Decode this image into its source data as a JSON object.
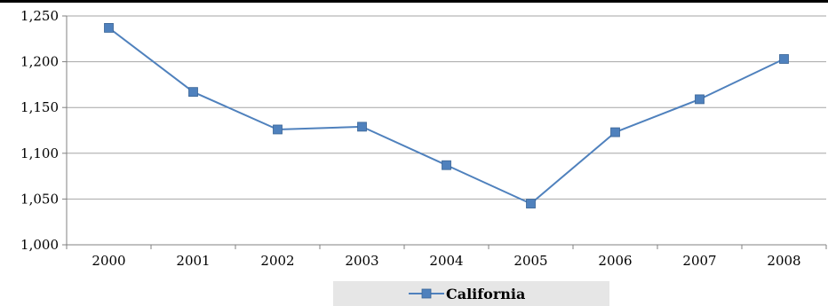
{
  "chart_data": {
    "type": "line",
    "title": "",
    "xlabel": "",
    "ylabel": "",
    "categories": [
      "2000",
      "2001",
      "2002",
      "2003",
      "2004",
      "2005",
      "2006",
      "2007",
      "2008"
    ],
    "series": [
      {
        "name": "California",
        "color": "#4f81bd",
        "marker": "square",
        "values": [
          1237,
          1167,
          1126,
          1129,
          1087,
          1045,
          1123,
          1159,
          1203
        ]
      }
    ],
    "ylim": [
      1000,
      1250
    ],
    "yticks": [
      1000,
      1050,
      1100,
      1150,
      1200,
      1250
    ],
    "ytick_labels": [
      "1,000",
      "1,050",
      "1,100",
      "1,150",
      "1,200",
      "1,250"
    ],
    "grid": "horizontal",
    "legend": "bottom"
  }
}
